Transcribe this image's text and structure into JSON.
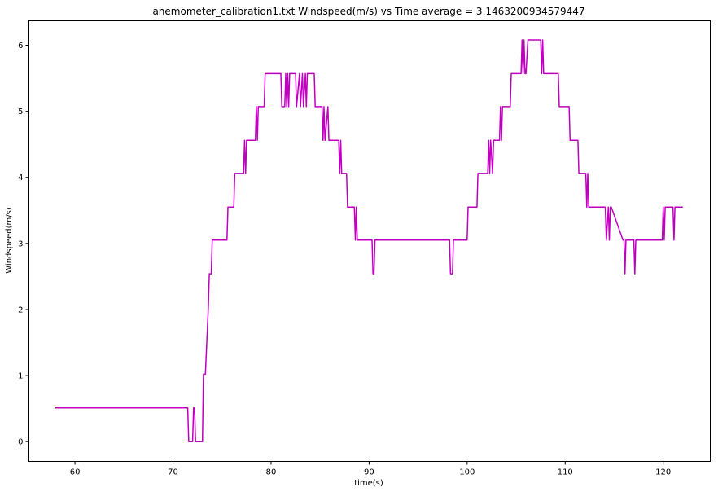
{
  "chart_data": {
    "type": "line",
    "title": "anemometer_calibration1.txt  Windspeed(m/s) vs Time  average = 3.1463200934579447",
    "xlabel": "time(s)",
    "ylabel": "Windspeed(m/s)",
    "xlim": [
      55.3,
      124.8
    ],
    "ylim": [
      -0.3,
      6.37
    ],
    "xticks": [
      60,
      70,
      80,
      90,
      100,
      110,
      120
    ],
    "yticks": [
      0,
      1,
      2,
      3,
      4,
      5,
      6
    ],
    "grid": false,
    "line_color": "#bf00bf",
    "series": [
      {
        "x": [
          58.0,
          71.5,
          71.6,
          71.7,
          72.0,
          72.1,
          72.2,
          72.3,
          73.0,
          73.1,
          73.3,
          73.6,
          73.7,
          73.9,
          74.0,
          74.4,
          74.5,
          75.5,
          75.6,
          76.2,
          76.3,
          77.2,
          77.3,
          77.4,
          77.5,
          78.4,
          78.5,
          78.6,
          78.7,
          79.3,
          79.4,
          81.0,
          81.1,
          81.4,
          81.5,
          81.6,
          81.7,
          81.8,
          81.9,
          82.5,
          82.6,
          82.9,
          83.0,
          83.2,
          83.3,
          83.5,
          83.6,
          83.7,
          83.8,
          84.4,
          84.5,
          85.2,
          85.3,
          85.4,
          85.5,
          85.8,
          85.9,
          86.9,
          87.0,
          87.1,
          87.2,
          87.7,
          87.8,
          88.5,
          88.6,
          88.7,
          88.8,
          90.3,
          90.4,
          90.5,
          90.6,
          98.2,
          98.3,
          98.5,
          98.6,
          100.0,
          100.1,
          101.0,
          101.1,
          102.1,
          102.2,
          102.3,
          102.4,
          102.6,
          102.7,
          103.3,
          103.4,
          103.5,
          103.6,
          104.4,
          104.5,
          105.5,
          105.6,
          105.7,
          105.8,
          105.9,
          106.0,
          106.2,
          106.3,
          107.5,
          107.6,
          107.7,
          107.8,
          109.3,
          109.4,
          110.4,
          110.5,
          111.3,
          111.4,
          112.1,
          112.2,
          112.3,
          112.4,
          114.1,
          114.2,
          114.4,
          114.5,
          114.6,
          114.7,
          115.9,
          116.0,
          116.1,
          116.2,
          116.9,
          117.0,
          117.1,
          117.2,
          119.9,
          120.0,
          120.1,
          120.2,
          121.0,
          121.1,
          121.2,
          121.3,
          122.0
        ],
        "y": [
          0.51,
          0.51,
          0.0,
          0.0,
          0.0,
          0.51,
          0.51,
          0.0,
          0.0,
          1.02,
          1.02,
          2.03,
          2.54,
          2.54,
          3.05,
          3.05,
          3.05,
          3.05,
          3.55,
          3.55,
          4.06,
          4.06,
          4.56,
          4.06,
          4.56,
          4.56,
          5.07,
          4.56,
          5.07,
          5.07,
          5.57,
          5.57,
          5.07,
          5.07,
          5.57,
          5.07,
          5.57,
          5.07,
          5.57,
          5.57,
          5.07,
          5.57,
          5.07,
          5.57,
          5.07,
          5.57,
          5.07,
          5.57,
          5.57,
          5.57,
          5.07,
          5.07,
          4.56,
          5.07,
          4.56,
          5.07,
          4.56,
          4.56,
          4.06,
          4.56,
          4.06,
          4.06,
          3.55,
          3.55,
          3.05,
          3.55,
          3.05,
          3.05,
          2.54,
          2.54,
          3.05,
          3.05,
          2.54,
          2.54,
          3.05,
          3.05,
          3.55,
          3.55,
          4.06,
          4.06,
          4.56,
          4.06,
          4.56,
          4.06,
          4.56,
          4.56,
          5.07,
          4.56,
          5.07,
          5.07,
          5.57,
          5.57,
          6.08,
          5.57,
          6.08,
          5.57,
          5.57,
          6.08,
          6.08,
          6.08,
          5.57,
          6.08,
          5.57,
          5.57,
          5.07,
          5.07,
          4.56,
          4.56,
          4.06,
          4.06,
          3.55,
          4.06,
          3.55,
          3.55,
          3.05,
          3.55,
          3.05,
          3.55,
          3.55,
          3.05,
          3.05,
          2.54,
          3.05,
          3.05,
          3.05,
          2.54,
          3.05,
          3.05,
          3.55,
          3.05,
          3.55,
          3.55,
          3.05,
          3.55,
          3.55,
          3.55
        ]
      }
    ]
  }
}
